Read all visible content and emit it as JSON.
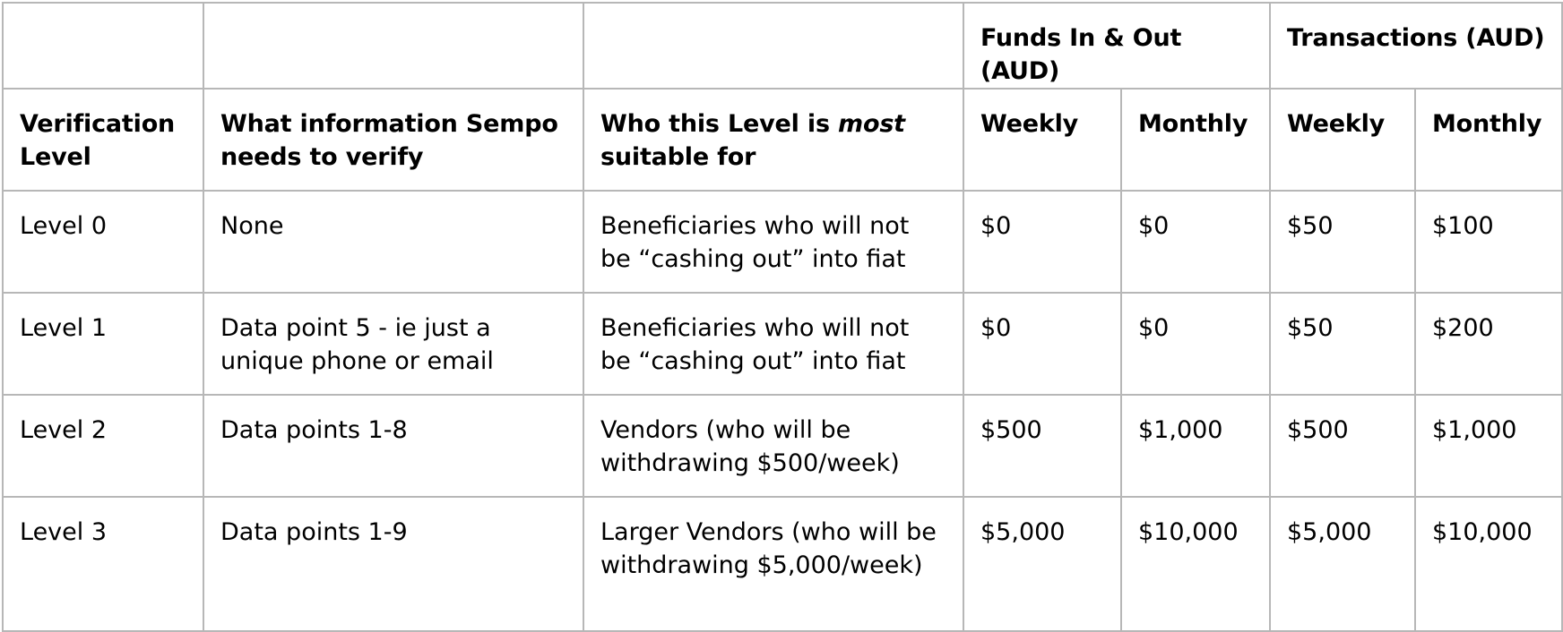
{
  "table": {
    "group_headers": {
      "funds": "Funds In & Out (AUD)",
      "transactions": "Transactions (AUD)"
    },
    "column_headers": {
      "verification_level": "Verification Level",
      "info_needed": "What information Sempo needs to verify",
      "suitable_prefix": "Who this Level is ",
      "suitable_emphasis": "most",
      "suitable_suffix": " suitable for",
      "funds_weekly": "Weekly",
      "funds_monthly": "Monthly",
      "tx_weekly": "Weekly",
      "tx_monthly": "Monthly"
    },
    "rows": [
      {
        "level": "Level 0",
        "info": "None",
        "suitable": "Beneficiaries who will not be “cashing out” into fiat",
        "funds_weekly": "$0",
        "funds_monthly": "$0",
        "tx_weekly": "$50",
        "tx_monthly": "$100"
      },
      {
        "level": "Level 1",
        "info": "Data point 5 - ie just a unique phone or email",
        "suitable": "Beneficiaries who will not be “cashing out” into fiat",
        "funds_weekly": "$0",
        "funds_monthly": "$0",
        "tx_weekly": "$50",
        "tx_monthly": "$200"
      },
      {
        "level": "Level 2",
        "info": "Data points 1-8",
        "suitable": "Vendors (who will be withdrawing $500/week)",
        "funds_weekly": "$500",
        "funds_monthly": "$1,000",
        "tx_weekly": "$500",
        "tx_monthly": "$1,000"
      },
      {
        "level": "Level 3",
        "info": "Data points 1-9",
        "suitable": "Larger Vendors (who will be withdrawing $5,000/week)",
        "funds_weekly": "$5,000",
        "funds_monthly": "$10,000",
        "tx_weekly": "$5,000",
        "tx_monthly": "$10,000"
      }
    ]
  }
}
